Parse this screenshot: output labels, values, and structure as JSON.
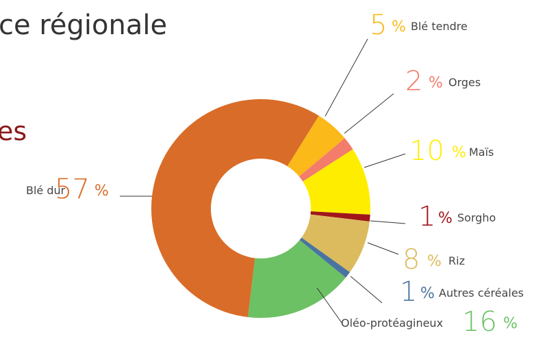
{
  "chart_data": {
    "type": "donut",
    "title": "ce régionale",
    "subtitle": "es",
    "unit": "%",
    "categories": [
      "Blé tendre",
      "Orges",
      "Maïs",
      "Sorgho",
      "Riz",
      "Autres céréales",
      "Oléo-protéagineux",
      "Blé dur"
    ],
    "values": [
      5,
      2,
      10,
      1,
      8,
      1,
      16,
      57
    ],
    "colors": [
      "#fbb91a",
      "#f47c6a",
      "#ffed00",
      "#a0161b",
      "#dcbb5e",
      "#4a74a0",
      "#6cc164",
      "#d96c28"
    ]
  }
}
